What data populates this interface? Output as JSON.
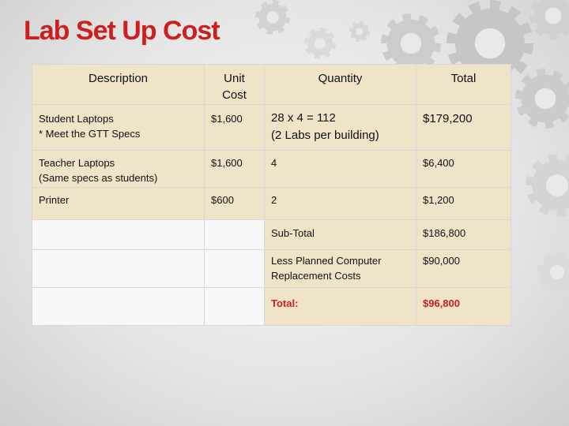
{
  "slide": {
    "title": "Lab Set Up Cost",
    "accent_color": "#cc1f1f",
    "table_fill_color": "#efe3c8",
    "background": "gray-gears"
  },
  "table": {
    "headers": {
      "description": "Description",
      "unit_cost_line1": "Unit",
      "unit_cost_line2": "Cost",
      "quantity": "Quantity",
      "total": "Total"
    },
    "rows": [
      {
        "description_line1": "Student Laptops",
        "description_line2": "* Meet the GTT Specs",
        "unit_cost": "$1,600",
        "quantity_line1": "28 x 4 = 112",
        "quantity_line2": "(2 Labs per building)",
        "total": "$179,200"
      },
      {
        "description_line1": "Teacher Laptops",
        "description_line2": "(Same specs as students)",
        "unit_cost": "$1,600",
        "quantity": "4",
        "total": "$6,400"
      },
      {
        "description": "Printer",
        "unit_cost": "$600",
        "quantity": "2",
        "total": "$1,200"
      }
    ],
    "summary": {
      "subtotal_label": "Sub-Total",
      "subtotal_value": "$186,800",
      "less_label_line1": "Less Planned Computer",
      "less_label_line2": "Replacement Costs",
      "less_value": "$90,000",
      "total_label": "Total:",
      "total_value": "$96,800"
    }
  }
}
